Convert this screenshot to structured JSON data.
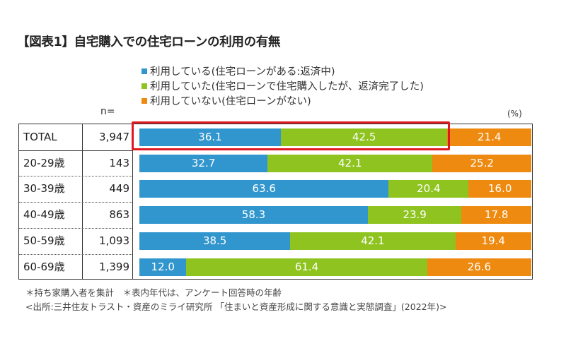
{
  "title": "【図表1】自宅購入での住宅ローンの利用の有無",
  "legend": [
    {
      "label": "利用している(住宅ローンがある:返済中)",
      "color": "#3196ce"
    },
    {
      "label": "利用していた(住宅ローンで住宅購入したが、返済完了した)",
      "color": "#8fc31f"
    },
    {
      "label": "利用していない(住宅ローンがない)",
      "color": "#ee8a10"
    }
  ],
  "n_header": "n=",
  "unit_label": "(%)",
  "notes": {
    "line1": "＊持ち家購入者を集計　＊表内年代は、アンケート回答時の年齢",
    "line2": "<出所:三井住友トラスト・資産のミライ研究所 「住まいと資産形成に関する意識と実態調査」(2022年)>"
  },
  "chart_data": {
    "type": "bar",
    "orientation": "horizontal",
    "stacked": true,
    "title": "【図表1】自宅購入での住宅ローンの利用の有無",
    "xlabel": "",
    "ylabel": "",
    "unit": "(%)",
    "xlim": [
      0,
      100
    ],
    "grid": false,
    "legend_position": "top",
    "categories": [
      "TOTAL",
      "20-29歳",
      "30-39歳",
      "40-49歳",
      "50-59歳",
      "60-69歳"
    ],
    "n": [
      "3,947",
      "143",
      "449",
      "863",
      "1,093",
      "1,399"
    ],
    "series": [
      {
        "name": "利用している(住宅ローンがある:返済中)",
        "color": "#3196ce",
        "values": [
          36.1,
          32.7,
          63.6,
          58.3,
          38.5,
          12.0
        ],
        "labels": [
          "36.1",
          "32.7",
          "63.6",
          "58.3",
          "38.5",
          "12.0"
        ]
      },
      {
        "name": "利用していた(住宅ローンで住宅購入したが、返済完了した)",
        "color": "#8fc31f",
        "values": [
          42.5,
          42.1,
          20.4,
          23.9,
          42.1,
          61.4
        ],
        "labels": [
          "42.5",
          "42.1",
          "20.4",
          "23.9",
          "42.1",
          "61.4"
        ]
      },
      {
        "name": "利用していない(住宅ローンがない)",
        "color": "#ee8a10",
        "values": [
          21.4,
          25.2,
          16.0,
          17.8,
          19.4,
          26.6
        ],
        "labels": [
          "21.4",
          "25.2",
          "16.0",
          "17.8",
          "19.4",
          "26.6"
        ]
      }
    ],
    "highlight": {
      "category": "TOTAL",
      "series": [
        0,
        1
      ]
    }
  }
}
